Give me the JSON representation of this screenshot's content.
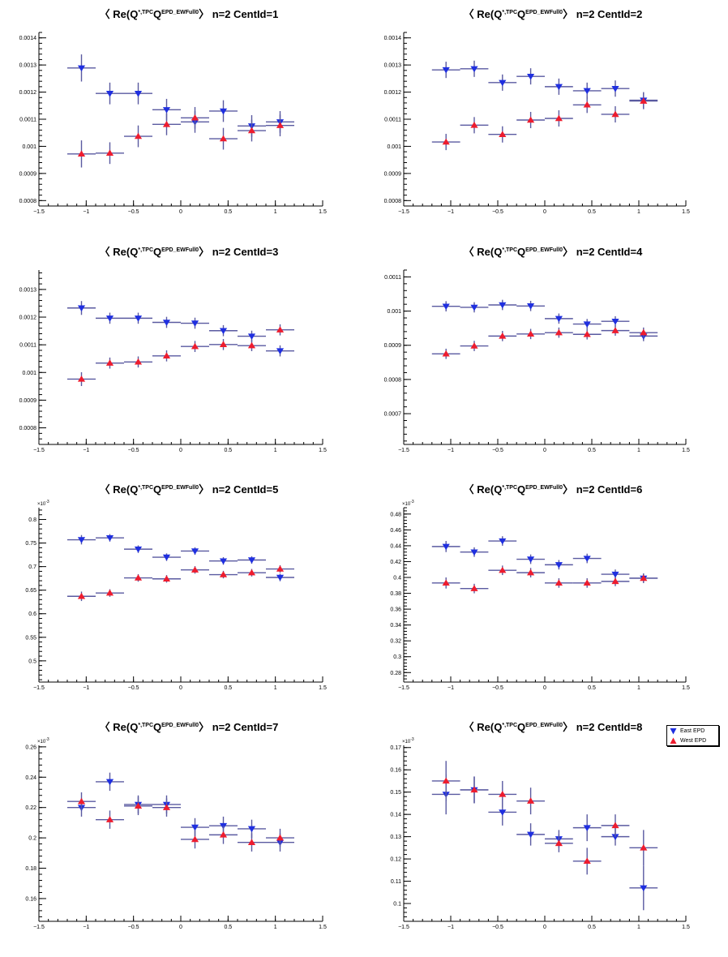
{
  "legend": {
    "east_label": "East EPD",
    "west_label": "West EPD"
  },
  "colors": {
    "east": "#1f2fe0",
    "west": "#ee1c2e",
    "bar": "#5a5aa0"
  },
  "x_ticks": [
    -1.5,
    -1,
    -0.5,
    0,
    0.5,
    1,
    1.5
  ],
  "chart_data": [
    {
      "type": "scatter",
      "title_prefix": "Re(Q",
      "title_sup1": "*,TPC",
      "title_mid": "Q",
      "title_sup2": "EPD_EWFull0",
      "title_suffix": "n=2  CentId=1",
      "x": [
        -1.05,
        -0.75,
        -0.45,
        -0.15,
        0.15,
        0.45,
        0.75,
        1.05
      ],
      "xhalf": 0.15,
      "xlim": [
        -1.5,
        1.5
      ],
      "ylim": [
        0.00078,
        0.00142
      ],
      "yticks": [
        0.0008,
        0.0009,
        0.001,
        0.0011,
        0.0012,
        0.0013,
        0.0014
      ],
      "ytick_labels": [
        "0.0008",
        "0.0009",
        "0.001",
        "0.0011",
        "0.0012",
        "0.0013",
        "0.0014"
      ],
      "exponent_label": "",
      "series": [
        {
          "name": "East EPD",
          "values": [
            0.001289,
            0.001195,
            0.001195,
            0.001135,
            0.00109,
            0.00113,
            0.001075,
            0.00109
          ],
          "errors": [
            5e-05,
            4e-05,
            4e-05,
            4e-05,
            4e-05,
            4e-05,
            4e-05,
            4e-05
          ]
        },
        {
          "name": "West EPD",
          "values": [
            0.000972,
            0.000975,
            0.001037,
            0.001081,
            0.001105,
            0.001028,
            0.001058,
            0.001077
          ],
          "errors": [
            5e-05,
            4e-05,
            4e-05,
            4e-05,
            4e-05,
            4e-05,
            4e-05,
            4e-05
          ]
        }
      ]
    },
    {
      "type": "scatter",
      "title_prefix": "Re(Q",
      "title_sup1": "*,TPC",
      "title_mid": "Q",
      "title_sup2": "EPD_EWFull0",
      "title_suffix": "n=2  CentId=2",
      "x": [
        -1.05,
        -0.75,
        -0.45,
        -0.15,
        0.15,
        0.45,
        0.75,
        1.05
      ],
      "xhalf": 0.15,
      "xlim": [
        -1.5,
        1.5
      ],
      "ylim": [
        0.00078,
        0.00142
      ],
      "yticks": [
        0.0008,
        0.0009,
        0.001,
        0.0011,
        0.0012,
        0.0013,
        0.0014
      ],
      "ytick_labels": [
        "0.0008",
        "0.0009",
        "0.001",
        "0.0011",
        "0.0012",
        "0.0013",
        "0.0014"
      ],
      "exponent_label": "",
      "series": [
        {
          "name": "East EPD",
          "values": [
            0.001282,
            0.001286,
            0.001235,
            0.001258,
            0.00122,
            0.001205,
            0.001213,
            0.00117
          ],
          "errors": [
            3e-05,
            3e-05,
            3e-05,
            3e-05,
            3e-05,
            3e-05,
            3e-05,
            3e-05
          ]
        },
        {
          "name": "West EPD",
          "values": [
            0.001016,
            0.001078,
            0.001044,
            0.001097,
            0.001103,
            0.001153,
            0.001118,
            0.001167
          ],
          "errors": [
            3e-05,
            3e-05,
            3e-05,
            3e-05,
            3e-05,
            3e-05,
            3e-05,
            3e-05
          ]
        }
      ]
    },
    {
      "type": "scatter",
      "title_prefix": "Re(Q",
      "title_sup1": "*,TPC",
      "title_mid": "Q",
      "title_sup2": "EPD_EWFull0",
      "title_suffix": "n=2  CentId=3",
      "x": [
        -1.05,
        -0.75,
        -0.45,
        -0.15,
        0.15,
        0.45,
        0.75,
        1.05
      ],
      "xhalf": 0.15,
      "xlim": [
        -1.5,
        1.5
      ],
      "ylim": [
        0.00074,
        0.00137
      ],
      "yticks": [
        0.0008,
        0.0009,
        0.001,
        0.0011,
        0.0012,
        0.0013
      ],
      "ytick_labels": [
        "0.0008",
        "0.0009",
        "0.001",
        "0.0011",
        "0.0012",
        "0.0013"
      ],
      "exponent_label": "",
      "series": [
        {
          "name": "East EPD",
          "values": [
            0.001233,
            0.001196,
            0.001196,
            0.001181,
            0.001178,
            0.001151,
            0.001131,
            0.001078
          ],
          "errors": [
            2.5e-05,
            2e-05,
            2e-05,
            2e-05,
            2e-05,
            2e-05,
            2e-05,
            2e-05
          ]
        },
        {
          "name": "West EPD",
          "values": [
            0.000976,
            0.001034,
            0.001038,
            0.00106,
            0.001094,
            0.001101,
            0.001097,
            0.001154
          ],
          "errors": [
            2.5e-05,
            2e-05,
            2e-05,
            2e-05,
            2e-05,
            2e-05,
            2e-05,
            2e-05
          ]
        }
      ]
    },
    {
      "type": "scatter",
      "title_prefix": "Re(Q",
      "title_sup1": "*,TPC",
      "title_mid": "Q",
      "title_sup2": "EPD_EWFull0",
      "title_suffix": "n=2  CentId=4",
      "x": [
        -1.05,
        -0.75,
        -0.45,
        -0.15,
        0.15,
        0.45,
        0.75,
        1.05
      ],
      "xhalf": 0.15,
      "xlim": [
        -1.5,
        1.5
      ],
      "ylim": [
        0.00061,
        0.00112
      ],
      "yticks": [
        0.0007,
        0.0008,
        0.0009,
        0.001,
        0.0011
      ],
      "ytick_labels": [
        "0.0007",
        "0.0008",
        "0.0009",
        "0.001",
        "0.0011"
      ],
      "exponent_label": "",
      "series": [
        {
          "name": "East EPD",
          "values": [
            0.001014,
            0.001011,
            0.001018,
            0.001015,
            0.000978,
            0.000962,
            0.00097,
            0.000927
          ],
          "errors": [
            1.5e-05,
            1.5e-05,
            1.5e-05,
            1.5e-05,
            1.5e-05,
            1.5e-05,
            1.5e-05,
            1.5e-05
          ]
        },
        {
          "name": "West EPD",
          "values": [
            0.000875,
            0.000898,
            0.000927,
            0.000933,
            0.000937,
            0.000932,
            0.000943,
            0.000937
          ],
          "errors": [
            1.5e-05,
            1.5e-05,
            1.5e-05,
            1.5e-05,
            1.5e-05,
            1.5e-05,
            1.5e-05,
            1.5e-05
          ]
        }
      ]
    },
    {
      "type": "scatter",
      "title_prefix": "Re(Q",
      "title_sup1": "*,TPC",
      "title_mid": "Q",
      "title_sup2": "EPD_EWFull0",
      "title_suffix": "n=2  CentId=5",
      "x": [
        -1.05,
        -0.75,
        -0.45,
        -0.15,
        0.15,
        0.45,
        0.75,
        1.05
      ],
      "xhalf": 0.15,
      "xlim": [
        -1.5,
        1.5
      ],
      "ylim": [
        0.455,
        0.825
      ],
      "yticks": [
        0.5,
        0.55,
        0.6,
        0.65,
        0.7,
        0.75,
        0.8
      ],
      "ytick_labels": [
        "0.5",
        "0.55",
        "0.6",
        "0.65",
        "0.7",
        "0.75",
        "0.8"
      ],
      "exponent_label": "×10",
      "exponent_power": "-3",
      "series": [
        {
          "name": "East EPD",
          "values": [
            0.757,
            0.761,
            0.737,
            0.72,
            0.733,
            0.712,
            0.714,
            0.677
          ],
          "errors": [
            0.01,
            0.008,
            0.008,
            0.008,
            0.008,
            0.008,
            0.008,
            0.008
          ]
        },
        {
          "name": "West EPD",
          "values": [
            0.637,
            0.644,
            0.676,
            0.674,
            0.693,
            0.683,
            0.687,
            0.695
          ],
          "errors": [
            0.01,
            0.008,
            0.008,
            0.008,
            0.008,
            0.008,
            0.008,
            0.008
          ]
        }
      ]
    },
    {
      "type": "scatter",
      "title_prefix": "Re(Q",
      "title_sup1": "*,TPC",
      "title_mid": "Q",
      "title_sup2": "EPD_EWFull0",
      "title_suffix": "n=2  CentId=6",
      "x": [
        -1.05,
        -0.75,
        -0.45,
        -0.15,
        0.15,
        0.45,
        0.75,
        1.05
      ],
      "xhalf": 0.15,
      "xlim": [
        -1.5,
        1.5
      ],
      "ylim": [
        0.268,
        0.488
      ],
      "yticks": [
        0.28,
        0.3,
        0.32,
        0.34,
        0.36,
        0.38,
        0.4,
        0.42,
        0.44,
        0.46,
        0.48
      ],
      "ytick_labels": [
        "0.28",
        "0.3",
        "0.32",
        "0.34",
        "0.36",
        "0.38",
        "0.4",
        "0.42",
        "0.44",
        "0.46",
        "0.48"
      ],
      "exponent_label": "×10",
      "exponent_power": "-3",
      "series": [
        {
          "name": "East EPD",
          "values": [
            0.439,
            0.432,
            0.446,
            0.423,
            0.416,
            0.424,
            0.404,
            0.399
          ],
          "errors": [
            0.007,
            0.006,
            0.006,
            0.006,
            0.006,
            0.006,
            0.006,
            0.006
          ]
        },
        {
          "name": "West EPD",
          "values": [
            0.393,
            0.386,
            0.409,
            0.406,
            0.393,
            0.393,
            0.395,
            0.399
          ],
          "errors": [
            0.007,
            0.006,
            0.006,
            0.006,
            0.006,
            0.006,
            0.006,
            0.006
          ]
        }
      ]
    },
    {
      "type": "scatter",
      "title_prefix": "Re(Q",
      "title_sup1": "*,TPC",
      "title_mid": "Q",
      "title_sup2": "EPD_EWFull0",
      "title_suffix": "n=2  CentId=7",
      "x": [
        -1.05,
        -0.75,
        -0.45,
        -0.15,
        0.15,
        0.45,
        0.75,
        1.05
      ],
      "xhalf": 0.15,
      "xlim": [
        -1.5,
        1.5
      ],
      "ylim": [
        0.145,
        0.261
      ],
      "yticks": [
        0.16,
        0.18,
        0.2,
        0.22,
        0.24,
        0.26
      ],
      "ytick_labels": [
        "0.16",
        "0.18",
        "0.2",
        "0.22",
        "0.24",
        "0.26"
      ],
      "exponent_label": "×10",
      "exponent_power": "-3",
      "series": [
        {
          "name": "East EPD",
          "values": [
            0.22,
            0.237,
            0.222,
            0.222,
            0.207,
            0.208,
            0.206,
            0.197
          ],
          "errors": [
            0.006,
            0.006,
            0.006,
            0.006,
            0.006,
            0.006,
            0.006,
            0.006
          ]
        },
        {
          "name": "West EPD",
          "values": [
            0.224,
            0.212,
            0.221,
            0.22,
            0.199,
            0.202,
            0.197,
            0.2
          ],
          "errors": [
            0.006,
            0.006,
            0.006,
            0.006,
            0.006,
            0.006,
            0.006,
            0.006
          ]
        }
      ]
    },
    {
      "type": "scatter",
      "title_prefix": "Re(Q",
      "title_sup1": "*,TPC",
      "title_mid": "Q",
      "title_sup2": "EPD_EWFull0",
      "title_suffix": "n=2  CentId=8",
      "x": [
        -1.05,
        -0.75,
        -0.45,
        -0.15,
        0.15,
        0.45,
        0.75,
        1.05
      ],
      "xhalf": 0.15,
      "xlim": [
        -1.5,
        1.5
      ],
      "ylim": [
        0.092,
        0.171
      ],
      "yticks": [
        0.1,
        0.11,
        0.12,
        0.13,
        0.14,
        0.15,
        0.16,
        0.17
      ],
      "ytick_labels": [
        "0.1",
        "0.11",
        "0.12",
        "0.13",
        "0.14",
        "0.15",
        "0.16",
        "0.17"
      ],
      "exponent_label": "×10",
      "exponent_power": "-3",
      "series": [
        {
          "name": "East EPD",
          "values": [
            0.149,
            0.151,
            0.141,
            0.131,
            0.129,
            0.134,
            0.13,
            0.107
          ],
          "errors": [
            0.009,
            0.006,
            0.006,
            0.005,
            0.004,
            0.006,
            0.004,
            0.01
          ]
        },
        {
          "name": "West EPD",
          "values": [
            0.155,
            0.151,
            0.149,
            0.146,
            0.127,
            0.119,
            0.135,
            0.125
          ],
          "errors": [
            0.009,
            0.006,
            0.006,
            0.006,
            0.004,
            0.006,
            0.005,
            0.008
          ]
        }
      ]
    }
  ]
}
